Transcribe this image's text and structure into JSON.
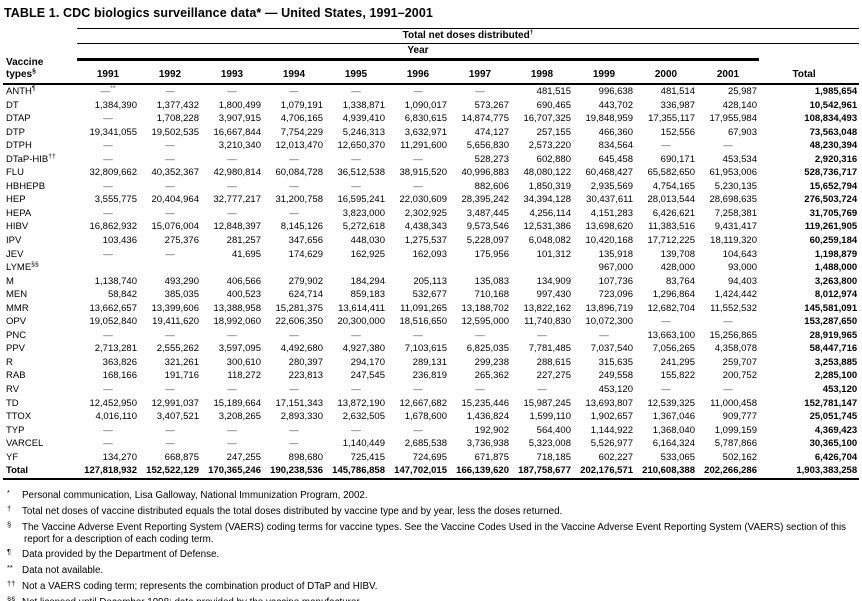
{
  "title": "TABLE 1. CDC biologics surveillance data* — United States, 1991–2001",
  "table": {
    "spanner_total": {
      "text": "Total net doses distributed",
      "sup": "†"
    },
    "spanner_year": "Year",
    "vaccine_header": {
      "line1": "Vaccine",
      "line2": "types",
      "sup": "§"
    },
    "years": [
      "1991",
      "1992",
      "1993",
      "1994",
      "1995",
      "1996",
      "1997",
      "1998",
      "1999",
      "2000",
      "2001"
    ],
    "total_label": "Total",
    "rows": [
      {
        "name": "ANTH",
        "sup": "¶",
        "values": [
          "—**",
          "—",
          "—",
          "—",
          "—",
          "—",
          "—",
          "481,515",
          "996,638",
          "481,514",
          "25,987"
        ],
        "total": "1,985,654"
      },
      {
        "name": "DT",
        "sup": "",
        "values": [
          "1,384,390",
          "1,377,432",
          "1,800,499",
          "1,079,191",
          "1,338,871",
          "1,090,017",
          "573,267",
          "690,465",
          "443,702",
          "336,987",
          "428,140"
        ],
        "total": "10,542,961"
      },
      {
        "name": "DTAP",
        "sup": "",
        "values": [
          "—",
          "1,708,228",
          "3,907,915",
          "4,706,165",
          "4,939,410",
          "6,830,615",
          "14,874,775",
          "16,707,325",
          "19,848,959",
          "17,355,117",
          "17,955,984"
        ],
        "total": "108,834,493"
      },
      {
        "name": "DTP",
        "sup": "",
        "values": [
          "19,341,055",
          "19,502,535",
          "16,667,844",
          "7,754,229",
          "5,246,313",
          "3,632,971",
          "474,127",
          "257,155",
          "466,360",
          "152,556",
          "67,903"
        ],
        "total": "73,563,048"
      },
      {
        "name": "DTPH",
        "sup": "",
        "values": [
          "—",
          "—",
          "3,210,340",
          "12,013,470",
          "12,650,370",
          "11,291,600",
          "5,656,830",
          "2,573,220",
          "834,564",
          "—",
          "—"
        ],
        "total": "48,230,394"
      },
      {
        "name": "DTaP-HIB",
        "sup": "††",
        "values": [
          "—",
          "—",
          "—",
          "—",
          "—",
          "—",
          "528,273",
          "602,880",
          "645,458",
          "690,171",
          "453,534"
        ],
        "total": "2,920,316"
      },
      {
        "name": "FLU",
        "sup": "",
        "values": [
          "32,809,662",
          "40,352,367",
          "42,980,814",
          "60,084,728",
          "36,512,538",
          "38,915,520",
          "40,996,883",
          "48,080,122",
          "60,468,427",
          "65,582,650",
          "61,953,006"
        ],
        "total": "528,736,717"
      },
      {
        "name": "HBHEPB",
        "sup": "",
        "values": [
          "—",
          "—",
          "—",
          "—",
          "—",
          "—",
          "882,606",
          "1,850,319",
          "2,935,569",
          "4,754,165",
          "5,230,135"
        ],
        "total": "15,652,794"
      },
      {
        "name": "HEP",
        "sup": "",
        "values": [
          "3,555,775",
          "20,404,964",
          "32,777,217",
          "31,200,758",
          "16,595,241",
          "22,030,609",
          "28,395,242",
          "34,394,128",
          "30,437,611",
          "28,013,544",
          "28,698,635"
        ],
        "total": "276,503,724"
      },
      {
        "name": "HEPA",
        "sup": "",
        "values": [
          "—",
          "—",
          "—",
          "—",
          "3,823,000",
          "2,302,925",
          "3,487,445",
          "4,256,114",
          "4,151,283",
          "6,426,621",
          "7,258,381"
        ],
        "total": "31,705,769"
      },
      {
        "name": "HIBV",
        "sup": "",
        "values": [
          "16,862,932",
          "15,076,004",
          "12,848,397",
          "8,145,126",
          "5,272,618",
          "4,438,343",
          "9,573,546",
          "12,531,386",
          "13,698,620",
          "11,383,516",
          "9,431,417"
        ],
        "total": "119,261,905"
      },
      {
        "name": "IPV",
        "sup": "",
        "values": [
          "103,436",
          "275,376",
          "281,257",
          "347,656",
          "448,030",
          "1,275,537",
          "5,228,097",
          "6,048,082",
          "10,420,168",
          "17,712,225",
          "18,119,320"
        ],
        "total": "60,259,184"
      },
      {
        "name": "JEV",
        "sup": "",
        "values": [
          "—",
          "—",
          "41,695",
          "174,629",
          "162,925",
          "162,093",
          "175,956",
          "101,312",
          "135,918",
          "139,708",
          "104,643"
        ],
        "total": "1,198,879"
      },
      {
        "name": "LYME",
        "sup": "§§",
        "values": [
          "",
          "",
          "",
          "",
          "",
          "",
          "",
          "",
          "967,000",
          "428,000",
          "93,000"
        ],
        "total": "1,488,000"
      },
      {
        "name": "M",
        "sup": "",
        "values": [
          "1,138,740",
          "493,290",
          "406,566",
          "279,902",
          "184,294",
          "205,113",
          "135,083",
          "134,909",
          "107,736",
          "83,764",
          "94,403"
        ],
        "total": "3,263,800"
      },
      {
        "name": "MEN",
        "sup": "",
        "values": [
          "58,842",
          "385,035",
          "400,523",
          "624,714",
          "859,183",
          "532,677",
          "710,168",
          "997,430",
          "723,096",
          "1,296,864",
          "1,424,442"
        ],
        "total": "8,012,974"
      },
      {
        "name": "MMR",
        "sup": "",
        "values": [
          "13,662,657",
          "13,399,606",
          "13,388,958",
          "15,281,375",
          "13,614,411",
          "11,091,265",
          "13,188,702",
          "13,822,162",
          "13,896,719",
          "12,682,704",
          "11,552,532"
        ],
        "total": "145,581,091"
      },
      {
        "name": "OPV",
        "sup": "",
        "values": [
          "19,052,840",
          "19,411,620",
          "18,992,060",
          "22,606,350",
          "20,300,000",
          "18,516,650",
          "12,595,000",
          "11,740,830",
          "10,072,300",
          "—",
          "—"
        ],
        "total": "153,287,650"
      },
      {
        "name": "PNC",
        "sup": "",
        "values": [
          "—",
          "—",
          "—",
          "—",
          "—",
          "—",
          "—",
          "—",
          "—",
          "13,663,100",
          "15,256,865"
        ],
        "total": "28,919,965"
      },
      {
        "name": "PPV",
        "sup": "",
        "values": [
          "2,713,281",
          "2,555,262",
          "3,597,095",
          "4,492,680",
          "4,927,380",
          "7,103,615",
          "6,825,035",
          "7,781,485",
          "7,037,540",
          "7,056,265",
          "4,358,078"
        ],
        "total": "58,447,716"
      },
      {
        "name": "R",
        "sup": "",
        "values": [
          "363,826",
          "321,261",
          "300,610",
          "280,397",
          "294,170",
          "289,131",
          "299,238",
          "288,615",
          "315,635",
          "241,295",
          "259,707"
        ],
        "total": "3,253,885"
      },
      {
        "name": "RAB",
        "sup": "",
        "values": [
          "168,166",
          "191,716",
          "118,272",
          "223,813",
          "247,545",
          "236,819",
          "265,362",
          "227,275",
          "249,558",
          "155,822",
          "200,752"
        ],
        "total": "2,285,100"
      },
      {
        "name": "RV",
        "sup": "",
        "values": [
          "—",
          "—",
          "—",
          "—",
          "—",
          "—",
          "—",
          "—",
          "453,120",
          "—",
          "—"
        ],
        "total": "453,120"
      },
      {
        "name": "TD",
        "sup": "",
        "values": [
          "12,452,950",
          "12,991,037",
          "15,189,664",
          "17,151,343",
          "13,872,190",
          "12,667,682",
          "15,235,446",
          "15,987,245",
          "13,693,807",
          "12,539,325",
          "11,000,458"
        ],
        "total": "152,781,147"
      },
      {
        "name": "TTOX",
        "sup": "",
        "values": [
          "4,016,110",
          "3,407,521",
          "3,208,265",
          "2,893,330",
          "2,632,505",
          "1,678,600",
          "1,436,824",
          "1,599,110",
          "1,902,657",
          "1,367,046",
          "909,777"
        ],
        "total": "25,051,745"
      },
      {
        "name": "TYP",
        "sup": "",
        "values": [
          "—",
          "—",
          "—",
          "—",
          "—",
          "—",
          "192,902",
          "564,400",
          "1,144,922",
          "1,368,040",
          "1,099,159"
        ],
        "total": "4,369,423"
      },
      {
        "name": "VARCEL",
        "sup": "",
        "values": [
          "—",
          "—",
          "—",
          "—",
          "1,140,449",
          "2,685,538",
          "3,736,938",
          "5,323,008",
          "5,526,977",
          "6,164,324",
          "5,787,866"
        ],
        "total": "30,365,100"
      },
      {
        "name": "YF",
        "sup": "",
        "values": [
          "134,270",
          "668,875",
          "247,255",
          "898,680",
          "725,415",
          "724,695",
          "671,875",
          "718,185",
          "602,227",
          "533,065",
          "502,162"
        ],
        "total": "6,426,704"
      }
    ],
    "total_row": {
      "name": "Total",
      "values": [
        "127,818,932",
        "152,522,129",
        "170,365,246",
        "190,238,536",
        "145,786,858",
        "147,702,015",
        "166,139,620",
        "187,758,677",
        "202,176,571",
        "210,608,388",
        "202,266,286"
      ],
      "total": "1,903,383,258"
    }
  },
  "footnotes": [
    {
      "marker": "*",
      "text": "Personal communication, Lisa Galloway, National Immunization Program, 2002."
    },
    {
      "marker": "†",
      "text": "Total net doses of vaccine distributed equals the total doses distributed by vaccine type and by year, less the doses returned."
    },
    {
      "marker": "§",
      "text": "The Vaccine Adverse Event Reporting System (VAERS) coding terms for vaccine types. See the Vaccine Codes Used in the Vaccine Adverse Event Reporting System (VAERS) section of this report for a description of each coding term."
    },
    {
      "marker": "¶",
      "text": "Data provided by the Department of Defense."
    },
    {
      "marker": "**",
      "text": "Data not available."
    },
    {
      "marker": "††",
      "text": "Not a VAERS coding term; represents the combination product of DTaP and HIBV."
    },
    {
      "marker": "§§",
      "text": "Not licensed until December 1998; data provided by the vaccine manufacturer."
    }
  ]
}
